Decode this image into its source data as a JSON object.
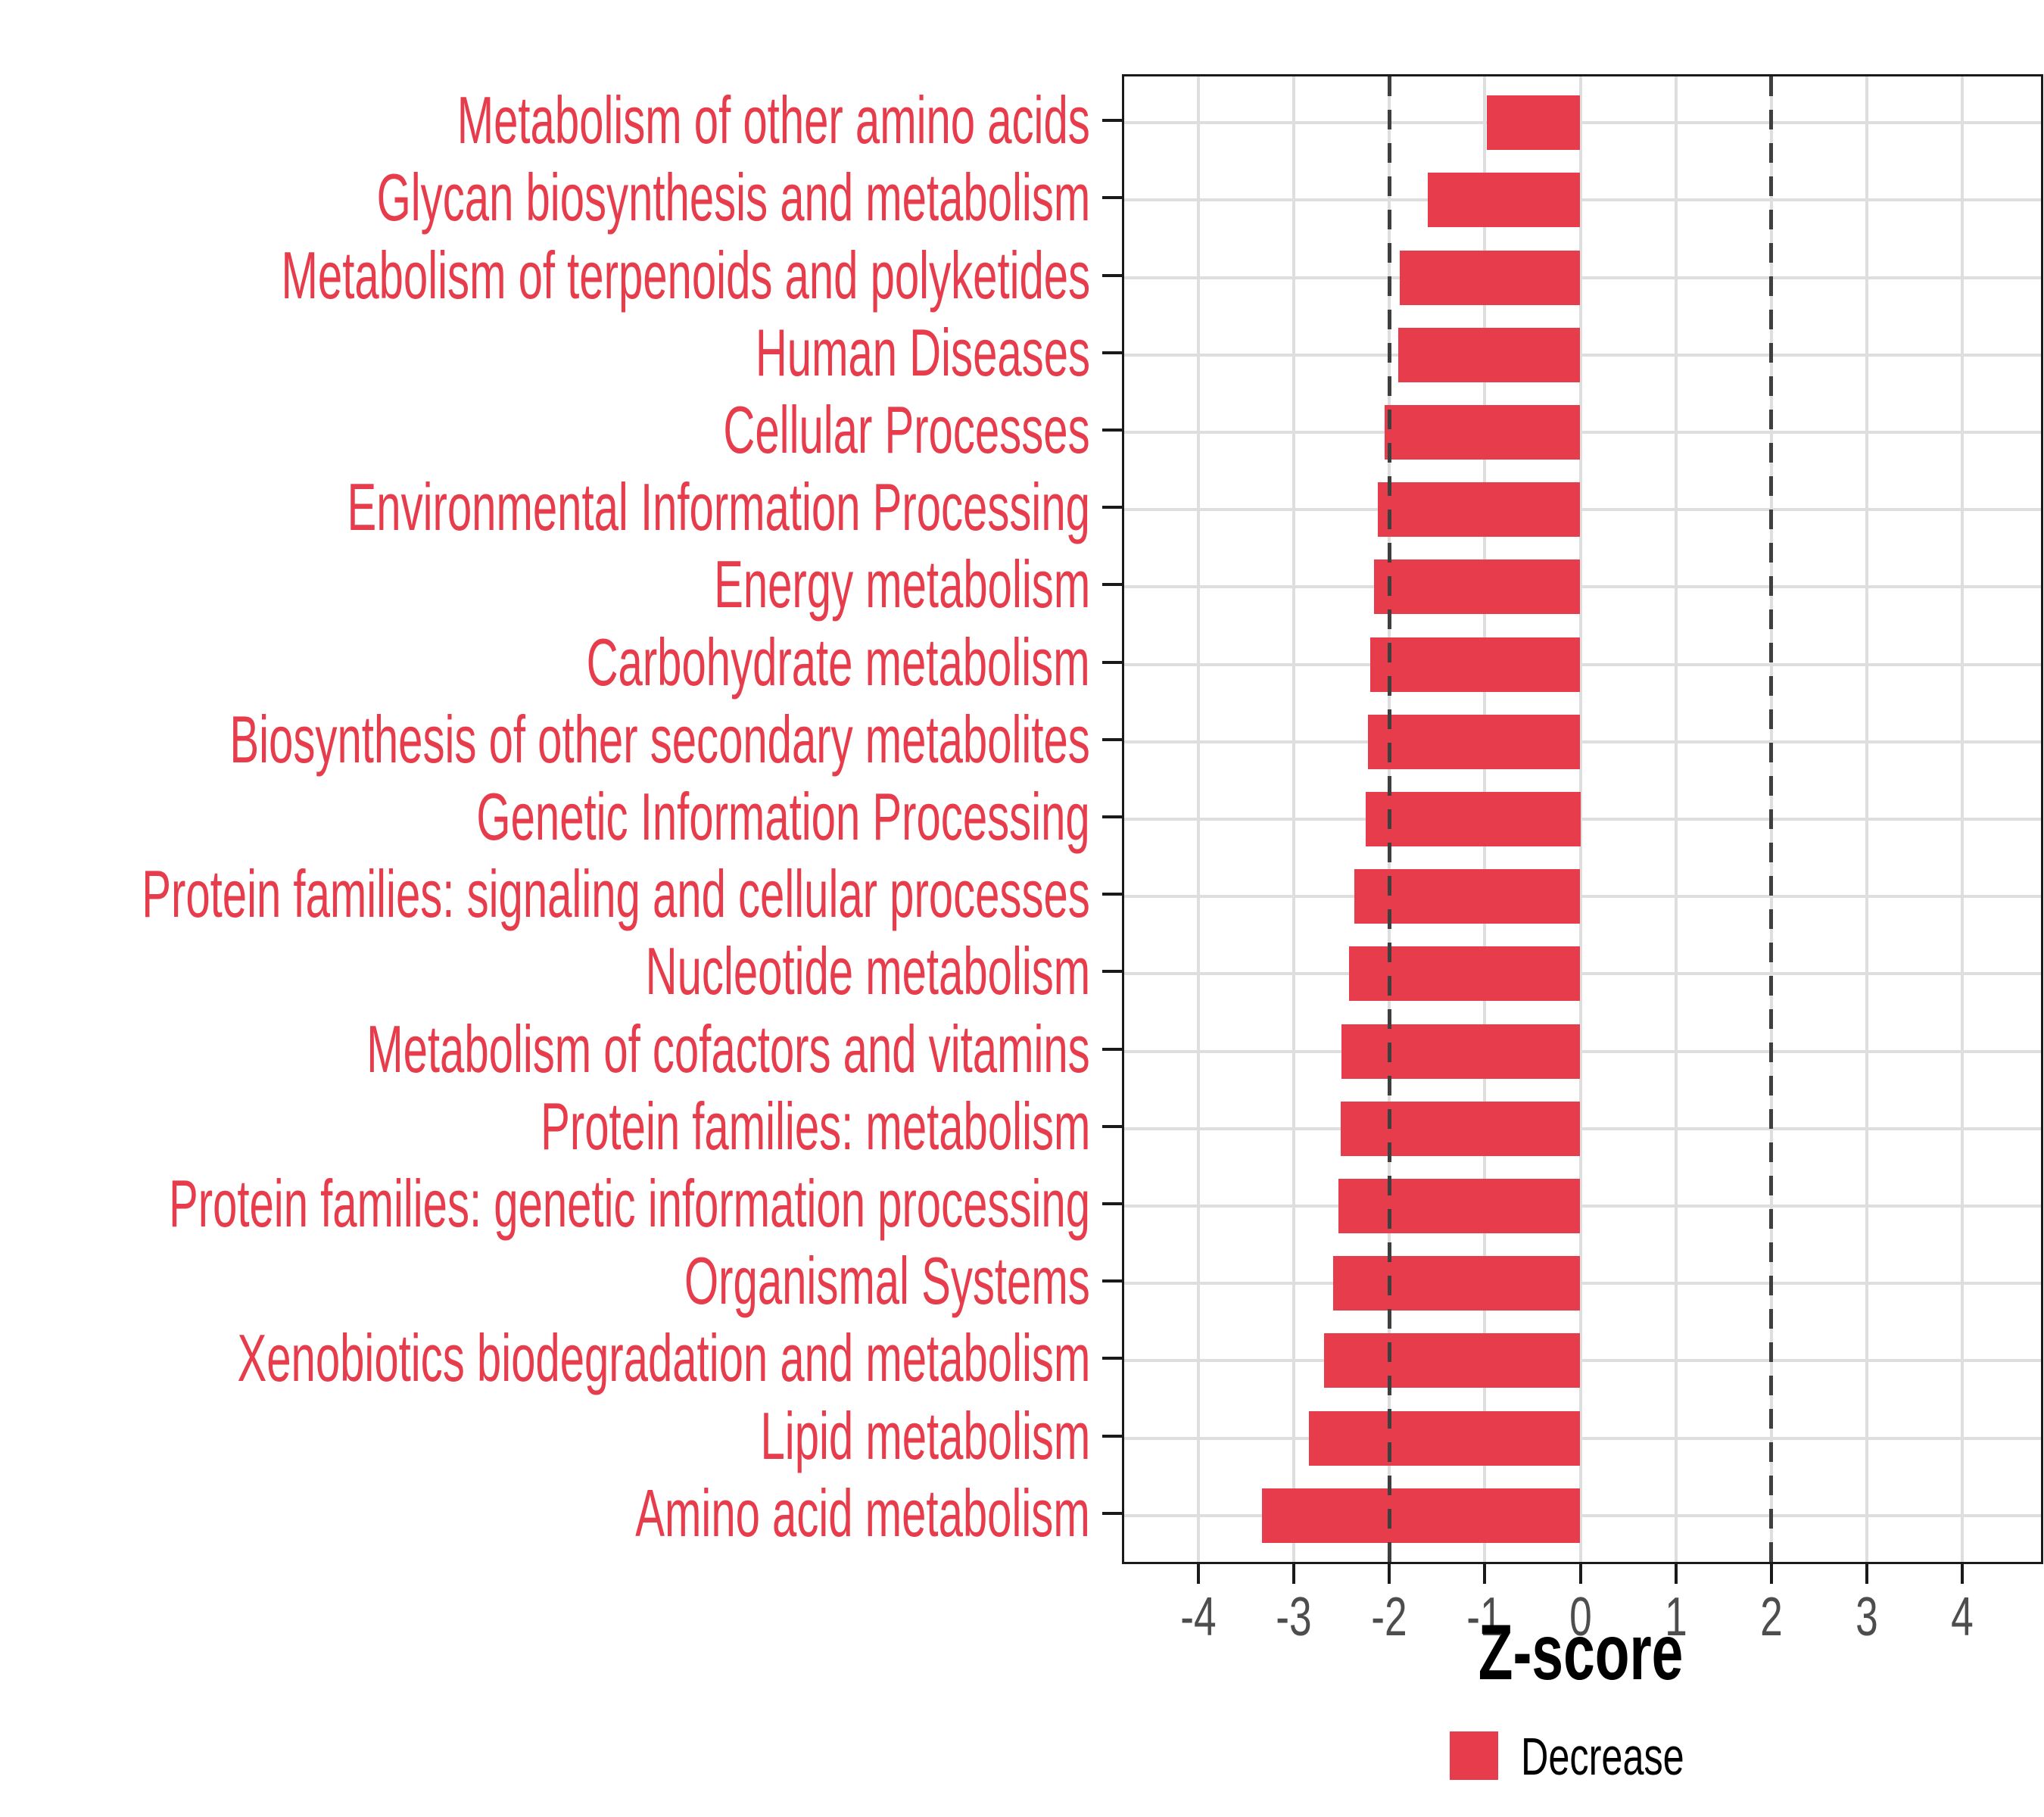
{
  "chart_data": {
    "type": "bar",
    "orientation": "horizontal",
    "title": "",
    "xlabel": "Z-score",
    "ylabel": "",
    "categories": [
      "Metabolism of other amino acids",
      "Glycan biosynthesis and metabolism",
      "Metabolism of terpenoids and polyketides",
      "Human Diseases",
      "Cellular Processes",
      "Environmental Information Processing",
      "Energy metabolism",
      "Carbohydrate metabolism",
      "Biosynthesis of other secondary metabolites",
      "Genetic Information Processing",
      "Protein families: signaling and cellular processes",
      "Nucleotide metabolism",
      "Metabolism of cofactors and vitamins",
      "Protein families: metabolism",
      "Protein families: genetic information processing",
      "Organismal Systems",
      "Xenobiotics biodegradation and metabolism",
      "Lipid metabolism",
      "Amino acid metabolism"
    ],
    "values": [
      -0.98,
      -1.6,
      -1.89,
      -1.91,
      -2.05,
      -2.12,
      -2.16,
      -2.2,
      -2.22,
      -2.25,
      -2.37,
      -2.42,
      -2.5,
      -2.51,
      -2.53,
      -2.59,
      -2.68,
      -2.84,
      -3.33
    ],
    "series": [
      {
        "name": "Decrease",
        "values": [
          -0.98,
          -1.6,
          -1.89,
          -1.91,
          -2.05,
          -2.12,
          -2.16,
          -2.2,
          -2.22,
          -2.25,
          -2.37,
          -2.42,
          -2.5,
          -2.51,
          -2.53,
          -2.59,
          -2.68,
          -2.84,
          -3.33
        ]
      }
    ],
    "xlim": [
      -4.8,
      4.8
    ],
    "xticks": [
      -4,
      -3,
      -2,
      -1,
      0,
      1,
      2,
      3,
      4
    ],
    "xtick_labels": [
      "-4",
      "-3",
      "-2",
      "-1",
      "0",
      "1",
      "2",
      "3",
      "4"
    ],
    "reference_lines": [
      -2,
      2
    ],
    "grid": "major gridlines at integer x values and at each category row",
    "legend": {
      "position": "bottom-center",
      "entries": [
        {
          "label": "Decrease",
          "color": "#e63c4b"
        }
      ]
    },
    "colors": {
      "bar_fill": "#e63c4b",
      "category_label": "#e63c4b",
      "tick_label": "#4d4d4d",
      "axis_title": "#000000",
      "gridline": "#dedede",
      "panel_border": "#1a1a1a",
      "reference_line": "#3f3f3f",
      "background": "#ffffff"
    }
  }
}
